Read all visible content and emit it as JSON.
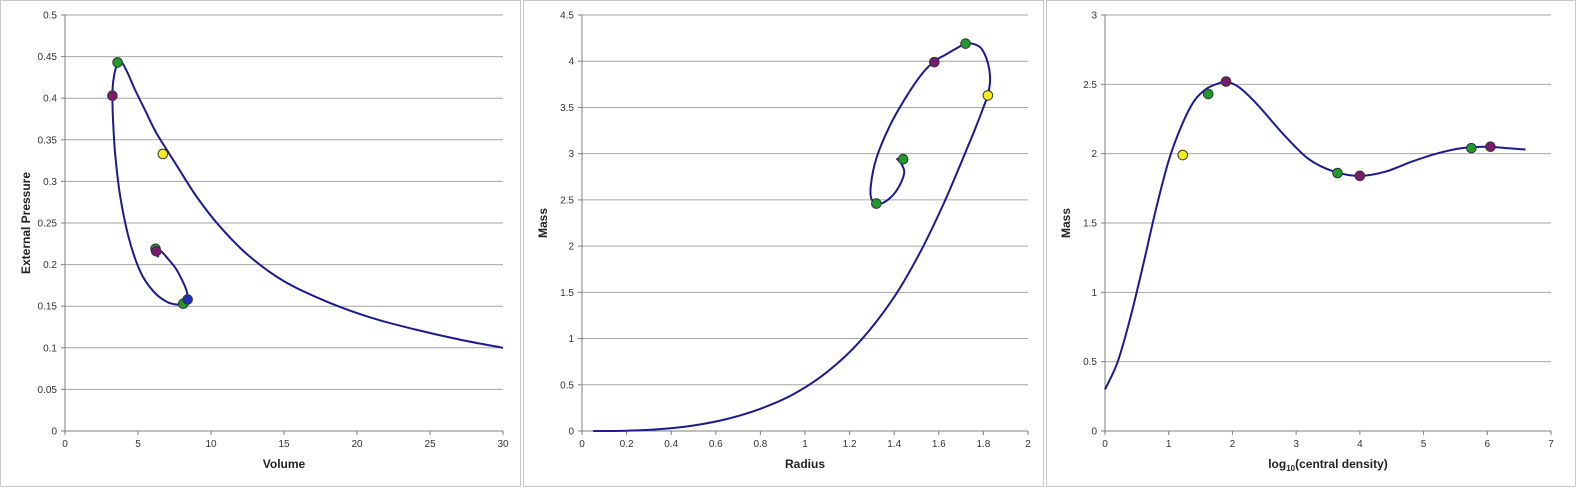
{
  "colors": {
    "curve": "#1b1b8f",
    "grid": "#a6a6a6",
    "axis": "#7f7f7f",
    "marker_green": "#1f9a2c",
    "marker_purple": "#7a1a6e",
    "marker_yellow": "#f5ee1a",
    "marker_blue": "#1f2fb8",
    "marker_edge": "#333333"
  },
  "chart_data": [
    {
      "type": "line",
      "title": "",
      "xlabel": "Volume",
      "ylabel": "External Pressure",
      "xlim": [
        0,
        30
      ],
      "ylim": [
        0,
        0.5
      ],
      "xticks": [
        0,
        5,
        10,
        15,
        20,
        25,
        30
      ],
      "yticks": [
        0,
        0.05,
        0.1,
        0.15,
        0.2,
        0.25,
        0.3,
        0.35,
        0.4,
        0.45,
        0.5
      ],
      "grid": true,
      "curve": {
        "x": [
          30,
          27,
          24,
          21,
          18,
          15,
          12.5,
          10.5,
          9,
          7.8,
          6.9,
          6.2,
          5.5,
          4.8,
          4.3,
          3.9,
          3.7,
          3.5,
          3.3,
          3.25,
          3.3,
          3.45,
          3.8,
          4.4,
          5.2,
          6.1,
          7.0,
          7.7,
          8.1,
          8.35,
          8.4,
          8.3,
          8.0,
          7.6,
          7.1,
          6.7,
          6.4,
          6.25,
          6.4
        ],
        "y": [
          0.1,
          0.11,
          0.122,
          0.136,
          0.155,
          0.18,
          0.212,
          0.248,
          0.282,
          0.315,
          0.34,
          0.36,
          0.385,
          0.41,
          0.43,
          0.443,
          0.445,
          0.438,
          0.42,
          0.4,
          0.37,
          0.33,
          0.28,
          0.23,
          0.19,
          0.167,
          0.155,
          0.152,
          0.153,
          0.158,
          0.162,
          0.17,
          0.182,
          0.195,
          0.206,
          0.214,
          0.218,
          0.214,
          0.209
        ]
      },
      "markers": [
        {
          "x": 3.6,
          "y": 0.443,
          "color": "green"
        },
        {
          "x": 3.25,
          "y": 0.403,
          "color": "purple"
        },
        {
          "x": 6.7,
          "y": 0.333,
          "color": "yellow"
        },
        {
          "x": 8.1,
          "y": 0.153,
          "color": "green"
        },
        {
          "x": 8.4,
          "y": 0.158,
          "color": "blue"
        },
        {
          "x": 6.2,
          "y": 0.219,
          "color": "green"
        },
        {
          "x": 6.25,
          "y": 0.216,
          "color": "purple"
        }
      ]
    },
    {
      "type": "line",
      "title": "",
      "xlabel": "Radius",
      "ylabel": "Mass",
      "xlim": [
        0,
        2
      ],
      "ylim": [
        0,
        4.5
      ],
      "xticks": [
        0,
        0.2,
        0.4,
        0.6,
        0.8,
        1,
        1.2,
        1.4,
        1.6,
        1.8,
        2
      ],
      "yticks": [
        0,
        0.5,
        1,
        1.5,
        2,
        2.5,
        3,
        3.5,
        4,
        4.5
      ],
      "grid": true,
      "curve": {
        "x": [
          0.05,
          0.2,
          0.35,
          0.5,
          0.65,
          0.8,
          0.95,
          1.1,
          1.25,
          1.4,
          1.52,
          1.62,
          1.7,
          1.76,
          1.8,
          1.82,
          1.83,
          1.82,
          1.79,
          1.75,
          1.72,
          1.68,
          1.63,
          1.58,
          1.52,
          1.45,
          1.38,
          1.32,
          1.295,
          1.3,
          1.34,
          1.39,
          1.425,
          1.445,
          1.43,
          1.41
        ],
        "y": [
          0,
          0.003,
          0.02,
          0.06,
          0.13,
          0.24,
          0.4,
          0.64,
          0.98,
          1.45,
          1.95,
          2.45,
          2.9,
          3.25,
          3.5,
          3.64,
          3.8,
          3.98,
          4.14,
          4.19,
          4.19,
          4.14,
          4.07,
          4.0,
          3.85,
          3.6,
          3.3,
          2.95,
          2.65,
          2.5,
          2.46,
          2.54,
          2.66,
          2.8,
          2.9,
          2.95
        ]
      },
      "markers": [
        {
          "x": 1.72,
          "y": 4.19,
          "color": "green"
        },
        {
          "x": 1.58,
          "y": 3.99,
          "color": "purple"
        },
        {
          "x": 1.82,
          "y": 3.63,
          "color": "yellow"
        },
        {
          "x": 1.32,
          "y": 2.46,
          "color": "green"
        },
        {
          "x": 1.44,
          "y": 2.94,
          "color": "green"
        }
      ]
    },
    {
      "type": "line",
      "title": "",
      "xlabel": "log10(central density)",
      "ylabel": "Mass",
      "xlim": [
        0,
        7
      ],
      "ylim": [
        0,
        3
      ],
      "xticks": [
        0,
        1,
        2,
        3,
        4,
        5,
        6,
        7
      ],
      "yticks": [
        0,
        0.5,
        1,
        1.5,
        2,
        2.5,
        3
      ],
      "grid": true,
      "curve": {
        "x": [
          0,
          0.2,
          0.4,
          0.6,
          0.8,
          1.0,
          1.2,
          1.4,
          1.6,
          1.8,
          1.9,
          2.1,
          2.4,
          2.8,
          3.2,
          3.6,
          4.0,
          4.4,
          4.8,
          5.2,
          5.6,
          6.0,
          6.3,
          6.6
        ],
        "y": [
          0.3,
          0.5,
          0.82,
          1.2,
          1.6,
          1.95,
          2.2,
          2.38,
          2.47,
          2.51,
          2.52,
          2.48,
          2.35,
          2.14,
          1.96,
          1.87,
          1.84,
          1.87,
          1.94,
          2.0,
          2.04,
          2.05,
          2.04,
          2.03
        ]
      },
      "markers": [
        {
          "x": 1.22,
          "y": 1.99,
          "color": "yellow"
        },
        {
          "x": 1.62,
          "y": 2.43,
          "color": "green"
        },
        {
          "x": 1.9,
          "y": 2.52,
          "color": "purple"
        },
        {
          "x": 3.65,
          "y": 1.86,
          "color": "green"
        },
        {
          "x": 4.0,
          "y": 1.84,
          "color": "purple"
        },
        {
          "x": 5.75,
          "y": 2.04,
          "color": "green"
        },
        {
          "x": 6.05,
          "y": 2.05,
          "color": "purple"
        }
      ]
    }
  ]
}
